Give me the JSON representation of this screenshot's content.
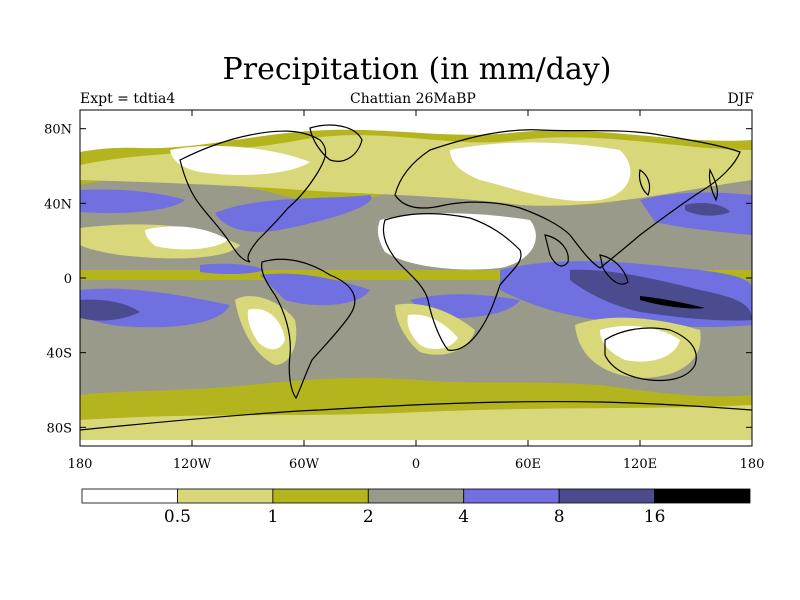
{
  "header": {
    "title": "Precipitation (in mm/day)",
    "subtitle_left": "Expt = tdtia4",
    "subtitle_center": "Chattian  26MaBP",
    "subtitle_right": "DJF"
  },
  "map": {
    "projection": "equirectangular",
    "lon_range": [
      -180,
      180
    ],
    "lat_range": [
      -90,
      90
    ],
    "lat_ticks": [
      {
        "value": 80,
        "label": "80N"
      },
      {
        "value": 40,
        "label": "40N"
      },
      {
        "value": 0,
        "label": "0"
      },
      {
        "value": -40,
        "label": "40S"
      },
      {
        "value": -80,
        "label": "80S"
      }
    ],
    "lon_ticks": [
      {
        "value": -180,
        "label": "180"
      },
      {
        "value": -120,
        "label": "120W"
      },
      {
        "value": -60,
        "label": "60W"
      },
      {
        "value": 0,
        "label": "0"
      },
      {
        "value": 60,
        "label": "60E"
      },
      {
        "value": 120,
        "label": "120E"
      },
      {
        "value": 180,
        "label": "180"
      }
    ]
  },
  "colorbar": {
    "levels": [
      "0.5",
      "1",
      "2",
      "4",
      "8",
      "16"
    ],
    "colors": [
      "#ffffff",
      "#d8d87a",
      "#b4b41e",
      "#9a9a8a",
      "#7070e0",
      "#4b4b90",
      "#000000"
    ]
  },
  "colors": {
    "band_0_05": "#ffffff",
    "band_05_1": "#d8d87a",
    "band_1_2": "#b4b41e",
    "band_2_4": "#9a9a8a",
    "band_4_8": "#7070e0",
    "band_8_16": "#4b4b90",
    "band_16_plus": "#000000",
    "coastline": "#000000"
  }
}
